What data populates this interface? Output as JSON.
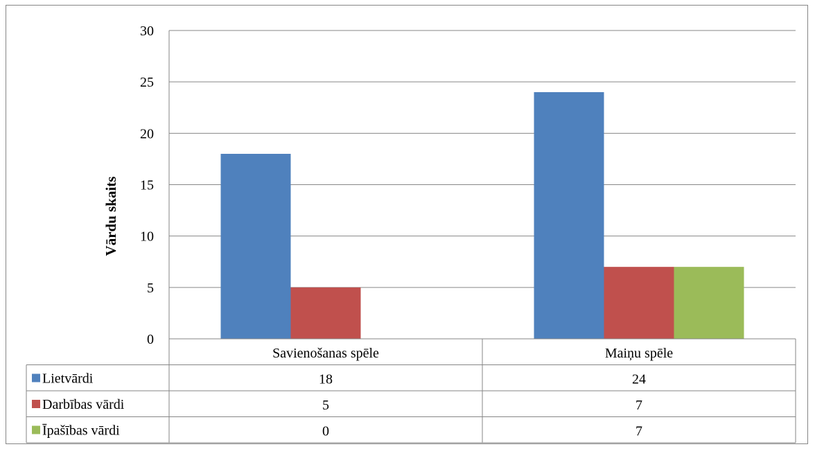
{
  "chart_data": {
    "type": "bar",
    "title": "",
    "xlabel": "",
    "ylabel": "Vārdu skaits",
    "ylim": [
      0,
      30
    ],
    "yticks": [
      "0",
      "5",
      "10",
      "15",
      "20",
      "25",
      "30"
    ],
    "grid": true,
    "legend": "data-table",
    "categories": [
      "Savienošanas spēle",
      "Maiņu spēle"
    ],
    "series": [
      {
        "name": "Lietvārdi",
        "values": [
          18,
          24
        ],
        "color": "#4F81BD"
      },
      {
        "name": "Darbības vārdi",
        "values": [
          5,
          7
        ],
        "color": "#C0504D"
      },
      {
        "name": "Īpašības vārdi",
        "values": [
          0,
          7
        ],
        "color": "#9BBB59"
      }
    ],
    "table_values": [
      [
        "18",
        "24"
      ],
      [
        "5",
        "7"
      ],
      [
        "0",
        "7"
      ]
    ]
  }
}
